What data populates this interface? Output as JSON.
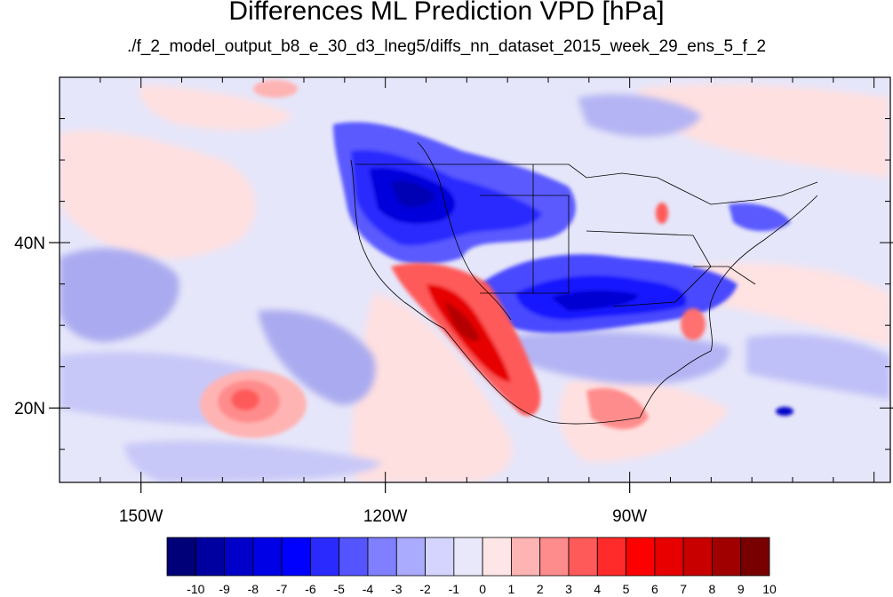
{
  "title": "Differences ML Prediction VPD [hPa]",
  "subtitle": "./f_2_model_output_b8_e_30_d3_lneg5/diffs_nn_dataset_2015_week_29_ens_5_f_2",
  "map": {
    "lon_range": [
      -160,
      -58
    ],
    "lat_range": [
      11,
      60
    ],
    "lon_ticks": [
      {
        "value": -150,
        "label": "150W"
      },
      {
        "value": -120,
        "label": "120W"
      },
      {
        "value": -90,
        "label": "90W"
      }
    ],
    "lat_ticks": [
      {
        "value": 40,
        "label": "40N"
      },
      {
        "value": 20,
        "label": "20N"
      }
    ]
  },
  "colorbar": {
    "levels": [
      -10,
      -9,
      -8,
      -7,
      -6,
      -5,
      -4,
      -3,
      -2,
      -1,
      0,
      1,
      2,
      3,
      4,
      5,
      6,
      7,
      8,
      9,
      10
    ],
    "labels": [
      "-10",
      "-9",
      "-8",
      "-7",
      "-6",
      "-5",
      "-4",
      "-3",
      "-2",
      "-1",
      "0",
      "1",
      "2",
      "3",
      "4",
      "5",
      "6",
      "7",
      "8",
      "9",
      "10"
    ],
    "colors": [
      "#000078",
      "#0000a0",
      "#0000c8",
      "#0000e6",
      "#0000ff",
      "#2a2aff",
      "#5555ff",
      "#7f7fff",
      "#aaaaff",
      "#d4d4ff",
      "#e8e8fa",
      "#ffe6e6",
      "#ffb4b4",
      "#ff8c8c",
      "#ff5a5a",
      "#ff2a2a",
      "#ff0000",
      "#e60000",
      "#c80000",
      "#a00000",
      "#780000"
    ]
  }
}
